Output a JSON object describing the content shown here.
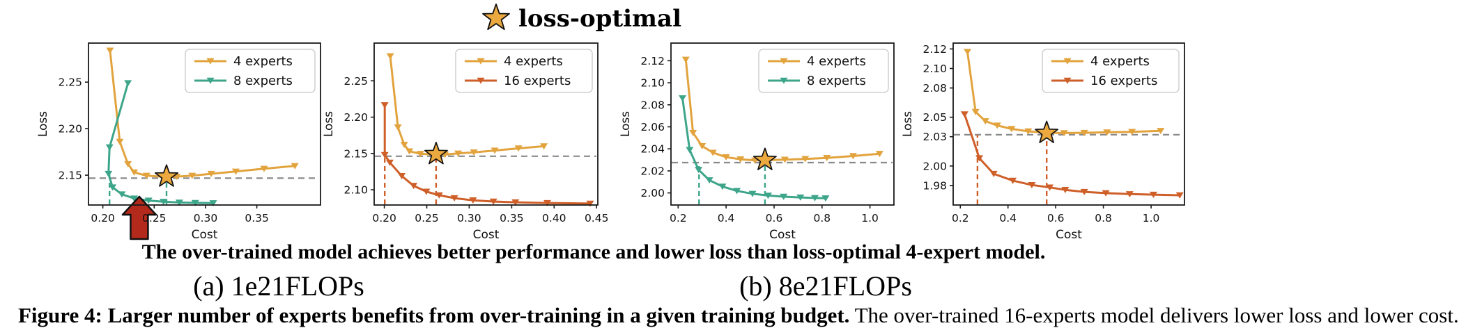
{
  "figure": {
    "top_legend": {
      "icon": "star-icon",
      "label": "loss-optimal"
    },
    "message": "The over-trained model achieves better performance and lower loss than loss-optimal 4-expert model.",
    "caption_a": "(a) 1e21FLOPs",
    "caption_b": "(b) 8e21FLOPs",
    "figure_caption_bold": "Figure 4: Larger number of experts benefits from over-training in a given training budget.",
    "figure_caption_rest": " The over-trained 16-experts model delivers lower loss and lower cost."
  },
  "colors": {
    "experts4": "#E2A33D",
    "experts8": "#3DA58A",
    "experts16": "#CF5F29",
    "star_fill": "#EBA93F",
    "optimal_line": "#8A8A8A",
    "arrow": "#B3291B"
  },
  "chart_data": [
    {
      "id": "panel-a-4-vs-8",
      "type": "line",
      "grid": false,
      "xlabel": "Cost",
      "ylabel": "Loss",
      "xlim": [
        0.186,
        0.412
      ],
      "ylim": [
        2.118,
        2.292
      ],
      "xticks": {
        "values": [
          0.2,
          0.25,
          0.3,
          0.35
        ],
        "labels": [
          "0.20",
          "0.25",
          "0.30",
          "0.35"
        ]
      },
      "yticks": {
        "values": [
          2.15,
          2.2,
          2.25
        ],
        "labels": [
          "2.15",
          "2.20",
          "2.25"
        ]
      },
      "legend": {
        "position": "upper right",
        "entries": [
          "4 experts",
          "8 experts"
        ]
      },
      "series": [
        {
          "name": "4 experts",
          "color_key": "experts4",
          "marker": "triangle-down",
          "points": [
            [
              0.207,
              2.284
            ],
            [
              0.2165,
              2.186
            ],
            [
              0.2245,
              2.162
            ],
            [
              0.2305,
              2.153
            ],
            [
              0.2425,
              2.1495
            ],
            [
              0.258,
              2.1485
            ],
            [
              0.272,
              2.1485
            ],
            [
              0.287,
              2.1495
            ],
            [
              0.3055,
              2.1515
            ],
            [
              0.3295,
              2.154
            ],
            [
              0.357,
              2.157
            ],
            [
              0.387,
              2.16
            ]
          ]
        },
        {
          "name": "8 experts",
          "color_key": "experts8",
          "marker": "triangle-down",
          "points": [
            [
              0.2245,
              2.249
            ],
            [
              0.2065,
              2.18
            ],
            [
              0.2055,
              2.1515
            ],
            [
              0.2095,
              2.137
            ],
            [
              0.2185,
              2.1295
            ],
            [
              0.2305,
              2.125
            ],
            [
              0.2445,
              2.1228
            ],
            [
              0.259,
              2.1215
            ],
            [
              0.2745,
              2.1207
            ],
            [
              0.29,
              2.1203
            ],
            [
              0.3075,
              2.12
            ]
          ]
        }
      ],
      "loss_optimal_star": [
        0.262,
        2.1485
      ],
      "optimal_hline_y": 2.1468,
      "vlines": {
        "color_key": "experts8",
        "items": [
          {
            "x": 0.2065,
            "y_top": 2.1515
          },
          {
            "x": 0.262,
            "y_top": 2.1468
          }
        ]
      },
      "arrow_annotation": {
        "x": 0.2355,
        "tip_y": 2.127
      }
    },
    {
      "id": "panel-a-4-vs-16",
      "type": "line",
      "grid": false,
      "xlabel": "Cost",
      "ylabel": "Loss",
      "xlim": [
        0.188,
        0.4515
      ],
      "ylim": [
        2.079,
        2.302
      ],
      "xticks": {
        "values": [
          0.2,
          0.25,
          0.3,
          0.35,
          0.4,
          0.45
        ],
        "labels": [
          "0.20",
          "0.25",
          "0.30",
          "0.35",
          "0.40",
          "0.45"
        ]
      },
      "yticks": {
        "values": [
          2.1,
          2.15,
          2.2,
          2.25
        ],
        "labels": [
          "2.10",
          "2.15",
          "2.20",
          "2.25"
        ]
      },
      "legend": {
        "position": "upper right",
        "entries": [
          "4 experts",
          "16 experts"
        ]
      },
      "series": [
        {
          "name": "4 experts",
          "color_key": "experts4",
          "marker": "triangle-down",
          "points": [
            [
              0.207,
              2.284
            ],
            [
              0.216,
              2.186
            ],
            [
              0.2235,
              2.162
            ],
            [
              0.2295,
              2.153
            ],
            [
              0.2425,
              2.1495
            ],
            [
              0.258,
              2.1485
            ],
            [
              0.2715,
              2.1485
            ],
            [
              0.287,
              2.15
            ],
            [
              0.3055,
              2.1515
            ],
            [
              0.33,
              2.154
            ],
            [
              0.358,
              2.157
            ],
            [
              0.388,
              2.16
            ]
          ]
        },
        {
          "name": "16 experts",
          "color_key": "experts16",
          "marker": "triangle-down",
          "points": [
            [
              0.2005,
              2.2165
            ],
            [
              0.2005,
              2.148
            ],
            [
              0.2065,
              2.1375
            ],
            [
              0.2205,
              2.119
            ],
            [
              0.2345,
              2.1055
            ],
            [
              0.2495,
              2.0975
            ],
            [
              0.2645,
              2.0925
            ],
            [
              0.2825,
              2.0885
            ],
            [
              0.3045,
              2.0855
            ],
            [
              0.3285,
              2.0838
            ],
            [
              0.3545,
              2.0827
            ],
            [
              0.392,
              2.0818
            ],
            [
              0.4425,
              2.081
            ]
          ]
        }
      ],
      "loss_optimal_star": [
        0.261,
        2.149
      ],
      "optimal_hline_y": 2.1462,
      "vlines": {
        "color_key": "experts16",
        "items": [
          {
            "x": 0.2005,
            "y_top": 2.148
          },
          {
            "x": 0.261,
            "y_top": 2.149
          }
        ]
      }
    },
    {
      "id": "panel-b-4-vs-8",
      "type": "line",
      "grid": false,
      "xlabel": "Cost",
      "ylabel": "Loss",
      "xlim": [
        0.17,
        1.1
      ],
      "ylim": [
        1.989,
        2.136
      ],
      "xticks": {
        "values": [
          0.2,
          0.4,
          0.6,
          0.8,
          1.0
        ],
        "labels": [
          "0.2",
          "0.4",
          "0.6",
          "0.8",
          "1.0"
        ]
      },
      "yticks": {
        "values": [
          2.0,
          2.02,
          2.04,
          2.06,
          2.08,
          2.1,
          2.12
        ],
        "labels": [
          "2.00",
          "2.02",
          "2.04",
          "2.06",
          "2.08",
          "2.10",
          "2.12"
        ]
      },
      "legend": {
        "position": "upper right",
        "entries": [
          "4 experts",
          "8 experts"
        ]
      },
      "series": [
        {
          "name": "4 experts",
          "color_key": "experts4",
          "marker": "triangle-down",
          "points": [
            [
              0.232,
              2.121
            ],
            [
              0.262,
              2.0545
            ],
            [
              0.3,
              2.0425
            ],
            [
              0.345,
              2.0365
            ],
            [
              0.4,
              2.0325
            ],
            [
              0.46,
              2.0305
            ],
            [
              0.52,
              2.0295
            ],
            [
              0.578,
              2.0298
            ],
            [
              0.645,
              2.0302
            ],
            [
              0.73,
              2.0308
            ],
            [
              0.82,
              2.0318
            ],
            [
              0.93,
              2.0335
            ],
            [
              1.04,
              2.0355
            ]
          ]
        },
        {
          "name": "8 experts",
          "color_key": "experts8",
          "marker": "triangle-down",
          "points": [
            [
              0.218,
              2.086
            ],
            [
              0.248,
              2.039
            ],
            [
              0.285,
              2.021
            ],
            [
              0.33,
              2.0115
            ],
            [
              0.385,
              2.0058
            ],
            [
              0.445,
              2.0018
            ],
            [
              0.51,
              1.9992
            ],
            [
              0.575,
              1.9976
            ],
            [
              0.64,
              1.9966
            ],
            [
              0.71,
              1.9959
            ],
            [
              0.77,
              1.9954
            ],
            [
              0.815,
              1.9951
            ]
          ]
        }
      ],
      "loss_optimal_star": [
        0.562,
        2.0298
      ],
      "optimal_hline_y": 2.0275,
      "vlines": {
        "color_key": "experts8",
        "items": [
          {
            "x": 0.287,
            "y_top": 2.0275
          },
          {
            "x": 0.562,
            "y_top": 2.0298
          }
        ]
      }
    },
    {
      "id": "panel-b-4-vs-16",
      "type": "line",
      "grid": false,
      "xlabel": "Cost",
      "ylabel": "Loss",
      "xlim": [
        0.17,
        1.14
      ],
      "ylim": [
        1.96,
        2.126
      ],
      "xticks": {
        "values": [
          0.2,
          0.4,
          0.6,
          0.8,
          1.0
        ],
        "labels": [
          "0.2",
          "0.4",
          "0.6",
          "0.8",
          "1.0"
        ]
      },
      "yticks": {
        "values": [
          1.98,
          2.0,
          2.03,
          2.05,
          2.08,
          2.1,
          2.12
        ],
        "labels": [
          "1.98",
          "2.00",
          "2.03",
          "2.05",
          "2.08",
          "2.10",
          "2.12"
        ]
      },
      "legend": {
        "position": "upper right",
        "entries": [
          "4 experts",
          "16 experts"
        ]
      },
      "series": [
        {
          "name": "4 experts",
          "color_key": "experts4",
          "marker": "triangle-down",
          "points": [
            [
              0.23,
              2.117
            ],
            [
              0.264,
              2.0555
            ],
            [
              0.305,
              2.046
            ],
            [
              0.355,
              2.0415
            ],
            [
              0.415,
              2.038
            ],
            [
              0.485,
              2.0355
            ],
            [
              0.562,
              2.034
            ],
            [
              0.635,
              2.0338
            ],
            [
              0.72,
              2.034
            ],
            [
              0.815,
              2.0345
            ],
            [
              0.92,
              2.035
            ],
            [
              1.04,
              2.036
            ]
          ]
        },
        {
          "name": "16 experts",
          "color_key": "experts16",
          "marker": "triangle-down",
          "points": [
            [
              0.218,
              2.053
            ],
            [
              0.28,
              2.008
            ],
            [
              0.34,
              1.992
            ],
            [
              0.42,
              1.985
            ],
            [
              0.5,
              1.9805
            ],
            [
              0.575,
              1.978
            ],
            [
              0.64,
              1.9755
            ],
            [
              0.72,
              1.9735
            ],
            [
              0.81,
              1.9722
            ],
            [
              0.91,
              1.9712
            ],
            [
              1.01,
              1.9706
            ],
            [
              1.12,
              1.97
            ]
          ]
        }
      ],
      "loss_optimal_star": [
        0.562,
        2.0338
      ],
      "optimal_hline_y": 2.032,
      "vlines": {
        "color_key": "experts16",
        "items": [
          {
            "x": 0.272,
            "y_top": 2.032
          },
          {
            "x": 0.562,
            "y_top": 2.0338
          }
        ]
      }
    }
  ]
}
